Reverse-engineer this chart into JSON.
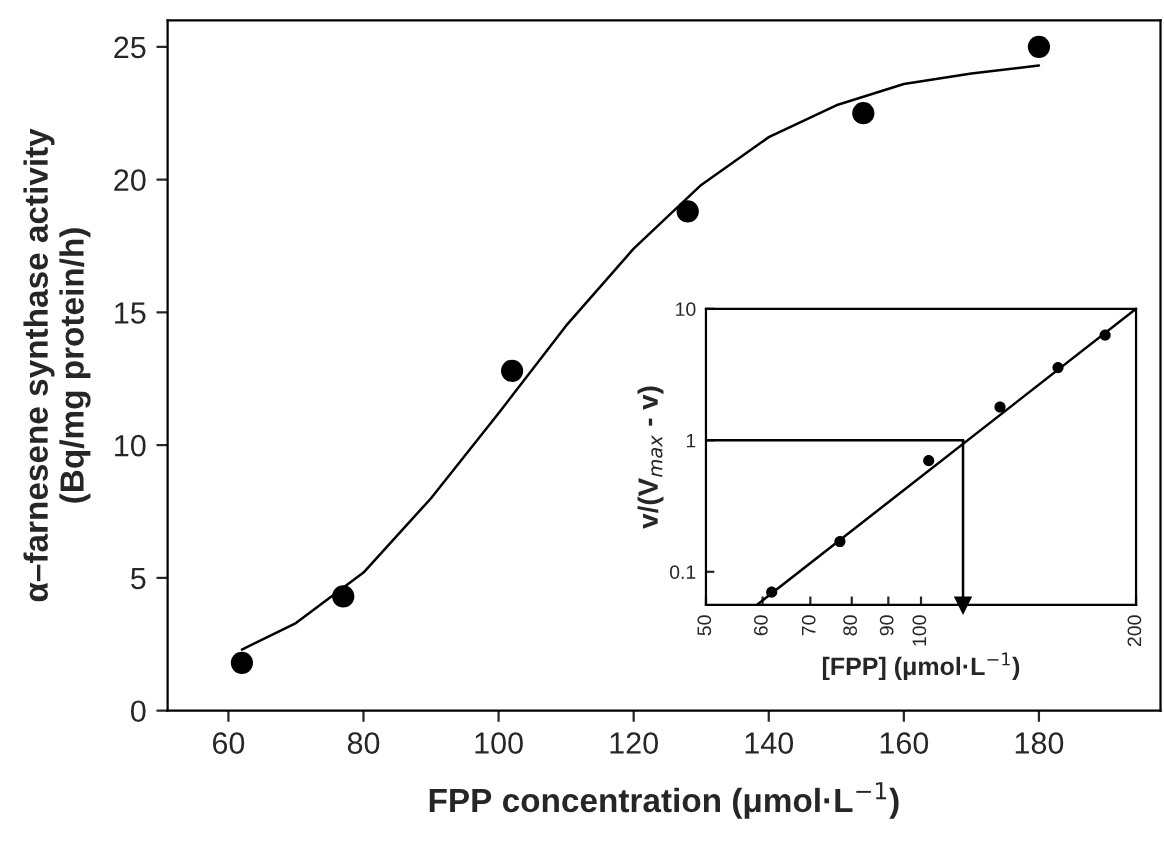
{
  "chart_data": [
    {
      "type": "scatter",
      "xlabel": "FPP concentration (μmol·L$^{−1}$)",
      "ylabel": "α–farnesene synthase activity\n(Bq/mg protein/h)",
      "xlim": [
        51,
        198
      ],
      "ylim": [
        0,
        26
      ],
      "xticks": [
        60,
        80,
        100,
        120,
        140,
        160,
        180
      ],
      "yticks": [
        0,
        5,
        10,
        15,
        20,
        25
      ],
      "grid": false,
      "legend": false,
      "series": [
        {
          "type": "scatter",
          "color": "#000000",
          "marker": "circle",
          "x": [
            62,
            77,
            102,
            128,
            154,
            180
          ],
          "values": [
            1.8,
            4.3,
            12.8,
            18.8,
            22.5,
            25.0
          ]
        },
        {
          "type": "line",
          "color": "#000000",
          "marker": "none",
          "line_style": "solid",
          "x": [
            62,
            70,
            80,
            90,
            100,
            110,
            120,
            130,
            140,
            150,
            160,
            170,
            180
          ],
          "values": [
            2.3,
            3.3,
            5.2,
            8.0,
            11.2,
            14.5,
            17.4,
            19.8,
            21.6,
            22.8,
            23.6,
            24.0,
            24.3
          ]
        }
      ]
    },
    {
      "type": "scatter",
      "xlabel": "[FPP] (μmol·L$^{−1}$)",
      "ylabel": "v/(V$_{max}$ - v)",
      "log": "xy",
      "xlim": [
        50,
        200
      ],
      "ylim": [
        0.056,
        10
      ],
      "xticks": [
        50,
        60,
        70,
        80,
        90,
        100,
        200
      ],
      "yticks": [
        0.1,
        1,
        10
      ],
      "grid": false,
      "legend": false,
      "series": [
        {
          "type": "scatter",
          "color": "#000000",
          "marker": "circle",
          "x": [
            61.8,
            77,
            102.5,
            129,
            155.5,
            181
          ],
          "values": [
            0.07,
            0.17,
            0.7,
            1.79,
            3.57,
            6.3
          ]
        },
        {
          "type": "line",
          "color": "#000000",
          "marker": "none",
          "line_style": "solid",
          "x": [
            58.9,
            200
          ],
          "values": [
            0.056,
            10
          ]
        }
      ],
      "ref_lines": [
        {
          "axis": "y",
          "value": 1,
          "color": "#000000"
        },
        {
          "axis": "x",
          "value": 114.5,
          "color": "#000000"
        }
      ]
    }
  ]
}
